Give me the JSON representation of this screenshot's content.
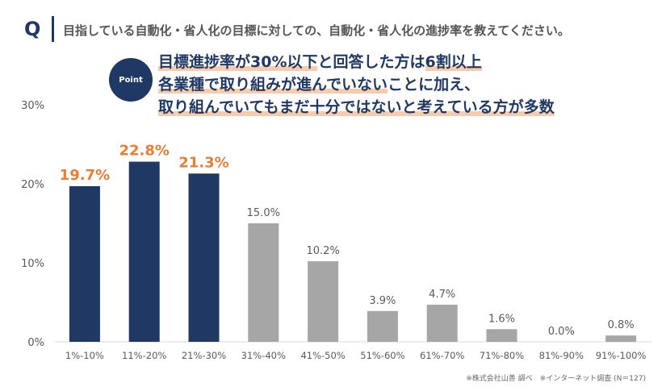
{
  "header": {
    "q_label": "Q",
    "question": "目指している自動化・省人化の目標に対しての、自動化・省人化の進捗率を教えてください。"
  },
  "point": {
    "badge": "Point",
    "line1": [
      {
        "text": "目標進捗率が30%以下",
        "hl": true
      },
      {
        "text": "と回答した方は",
        "hl": false
      },
      {
        "text": "6割以上",
        "hl": true
      }
    ],
    "line2": [
      {
        "text": "各業種で取り組みが進んでいない",
        "hl": true
      },
      {
        "text": "ことに加え、",
        "hl": false
      }
    ],
    "line3": [
      {
        "text": "取り組んでいてもまだ十分ではないと考えている方が多数",
        "hl": true
      }
    ]
  },
  "footnote": "※株式会社山善 調べ　※インターネット調査 (N＝127)",
  "chart_data": {
    "type": "bar",
    "categories": [
      "1%-10%",
      "11%-20%",
      "21%-30%",
      "31%-40%",
      "41%-50%",
      "51%-60%",
      "61%-70%",
      "71%-80%",
      "81%-90%",
      "91%-100%"
    ],
    "values": [
      19.7,
      22.8,
      21.3,
      15.0,
      10.2,
      3.9,
      4.7,
      1.6,
      0.0,
      0.8
    ],
    "data_labels": [
      "19.7%",
      "22.8%",
      "21.3%",
      "15.0%",
      "10.2%",
      "3.9%",
      "4.7%",
      "1.6%",
      "0.0%",
      "0.8%"
    ],
    "highlighted": [
      true,
      true,
      true,
      false,
      false,
      false,
      false,
      false,
      false,
      false
    ],
    "ylim": [
      0,
      30
    ],
    "yticks": [
      "0%",
      "10%",
      "20%",
      "30%"
    ],
    "grid": false,
    "colors": {
      "highlight": "#1f3864",
      "normal": "#a6a6a6",
      "highlight_label": "#ed7d31",
      "normal_label": "#595959"
    }
  }
}
